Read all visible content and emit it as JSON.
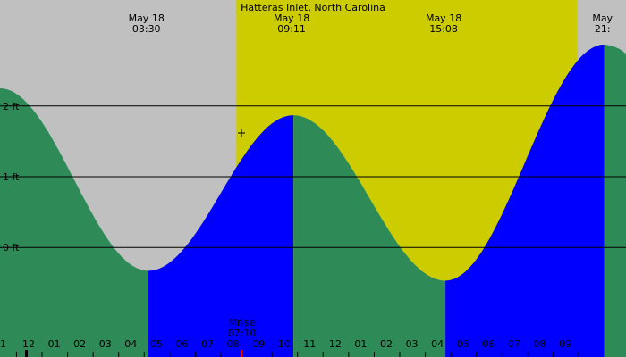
{
  "chart_data": {
    "type": "area",
    "title": "Hatteras Inlet, North Carolina",
    "colors": {
      "night": "#c0c0c0",
      "day": "#cccc00",
      "falling": "#2e8b57",
      "rising": "#0000ff",
      "line": "#000000"
    },
    "x_range_hours": [
      -2.3,
      22.2
    ],
    "y_range_ft": [
      -1.55,
      3.5
    ],
    "daylight": {
      "start_hour": 6.95,
      "end_hour": 20.3
    },
    "extremes": [
      {
        "date": "May 18",
        "time": "03:30",
        "hour": 3.5,
        "height_ft": -0.33,
        "type": "low"
      },
      {
        "date": "May 18",
        "time": "09:11",
        "hour": 9.183,
        "height_ft": 1.87,
        "type": "high"
      },
      {
        "date": "May 18",
        "time": "15:08",
        "hour": 15.133,
        "height_ft": -0.47,
        "type": "low"
      },
      {
        "date": "May",
        "time": "21:",
        "hour": 21.35,
        "height_ft": 2.87,
        "type": "high"
      }
    ],
    "start": {
      "hour": -2.3,
      "height_ft": 2.25
    },
    "gridlines": [
      {
        "label": "2 ft",
        "value": 2
      },
      {
        "label": "1 ft",
        "value": 1
      },
      {
        "label": "0 ft",
        "value": 0
      }
    ],
    "moonrise": {
      "label": "Mrise",
      "time": "07:10",
      "hour": 7.167
    },
    "tick_labels": [
      {
        "label": "1",
        "hour": -2.25
      },
      {
        "label": "12",
        "hour": -1.25
      },
      {
        "label": "01",
        "hour": -0.25
      },
      {
        "label": "02",
        "hour": 0.75
      },
      {
        "label": "03",
        "hour": 1.75
      },
      {
        "label": "04",
        "hour": 2.75
      },
      {
        "label": "05",
        "hour": 3.75
      },
      {
        "label": "06",
        "hour": 4.75
      },
      {
        "label": "07",
        "hour": 5.75
      },
      {
        "label": "08",
        "hour": 6.75
      },
      {
        "label": "09",
        "hour": 7.75
      },
      {
        "label": "10",
        "hour": 8.75
      },
      {
        "label": "11",
        "hour": 9.75
      },
      {
        "label": "12",
        "hour": 10.75
      },
      {
        "label": "01",
        "hour": 11.75
      },
      {
        "label": "02",
        "hour": 12.75
      },
      {
        "label": "03",
        "hour": 13.75
      },
      {
        "label": "04",
        "hour": 14.75
      },
      {
        "label": "05",
        "hour": 15.75
      },
      {
        "label": "06",
        "hour": 16.75
      },
      {
        "label": "07",
        "hour": 17.75
      },
      {
        "label": "08",
        "hour": 18.75
      },
      {
        "label": "09",
        "hour": 19.75
      }
    ]
  }
}
